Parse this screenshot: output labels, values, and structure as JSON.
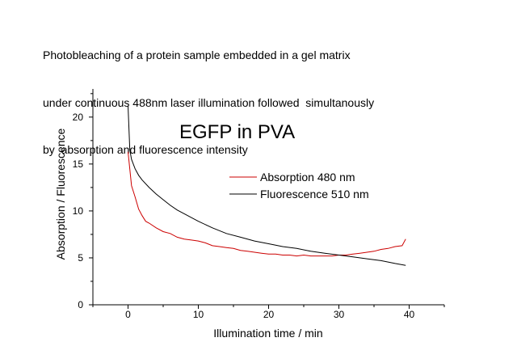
{
  "caption": {
    "line1": "Photobleaching of a protein sample embedded in a gel matrix",
    "line2": "under continuous 488nm laser illumination followed  simultanously",
    "line3": "by  absorption and fluorescence intensity"
  },
  "chart_data": {
    "type": "line",
    "title": "EGFP in PVA",
    "xlabel": "Illumination time / min",
    "ylabel": "Absorption / Fluorescence",
    "xlim": [
      -5,
      45
    ],
    "ylim": [
      0,
      23
    ],
    "x_ticks": [
      0,
      10,
      20,
      30,
      40
    ],
    "y_ticks": [
      0,
      5,
      10,
      15,
      20
    ],
    "grid": false,
    "legend_position": "center-right",
    "series": [
      {
        "name": "Absorption 480 nm",
        "color": "#cc0000",
        "x": [
          0,
          0.5,
          1,
          1.5,
          2,
          2.5,
          3,
          4,
          5,
          6,
          7,
          8,
          9,
          10,
          11,
          12,
          13,
          14,
          15,
          16,
          17,
          18,
          19,
          20,
          21,
          22,
          23,
          24,
          25,
          26,
          27,
          28,
          29,
          30,
          31,
          32,
          33,
          34,
          35,
          36,
          37,
          38,
          39,
          39.5
        ],
        "values": [
          16.3,
          12.7,
          11.5,
          10.2,
          9.5,
          8.9,
          8.7,
          8.2,
          7.8,
          7.6,
          7.2,
          7.0,
          6.9,
          6.8,
          6.6,
          6.3,
          6.2,
          6.1,
          6.0,
          5.8,
          5.7,
          5.6,
          5.5,
          5.4,
          5.4,
          5.3,
          5.3,
          5.2,
          5.3,
          5.2,
          5.2,
          5.2,
          5.2,
          5.3,
          5.3,
          5.4,
          5.5,
          5.6,
          5.7,
          5.9,
          6.0,
          6.2,
          6.3,
          7.0
        ]
      },
      {
        "name": "Fluorescence 510 nm",
        "color": "#000000",
        "x": [
          0,
          0.25,
          0.5,
          1,
          1.5,
          2,
          3,
          4,
          5,
          6,
          7,
          8,
          10,
          12,
          14,
          16,
          18,
          20,
          22,
          24,
          26,
          28,
          30,
          32,
          34,
          36,
          38,
          39.5
        ],
        "values": [
          21.2,
          16.5,
          15.5,
          14.5,
          13.8,
          13.3,
          12.5,
          11.8,
          11.2,
          10.6,
          10.1,
          9.7,
          8.9,
          8.2,
          7.6,
          7.2,
          6.8,
          6.5,
          6.2,
          6.0,
          5.7,
          5.5,
          5.3,
          5.1,
          4.9,
          4.7,
          4.4,
          4.2
        ]
      }
    ]
  }
}
